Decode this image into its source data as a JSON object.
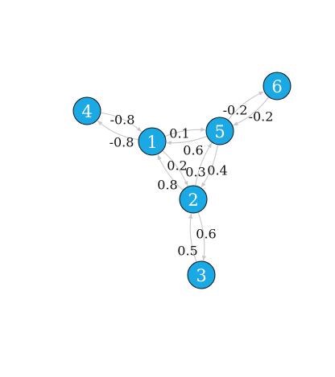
{
  "graph": {
    "colors": {
      "node_fill": "#1ba9e6",
      "node_stroke": "#111111",
      "node_label": "#ffffff",
      "edge": "#c8c8c8",
      "edge_label": "#111111"
    },
    "nodes": [
      {
        "id": "1",
        "label": "1"
      },
      {
        "id": "2",
        "label": "2"
      },
      {
        "id": "3",
        "label": "3"
      },
      {
        "id": "4",
        "label": "4"
      },
      {
        "id": "5",
        "label": "5"
      },
      {
        "id": "6",
        "label": "6"
      }
    ],
    "edges": [
      {
        "from": "4",
        "to": "1",
        "label": "-0.8"
      },
      {
        "from": "1",
        "to": "4",
        "label": "-0.8"
      },
      {
        "from": "5",
        "to": "1",
        "label": "0.1"
      },
      {
        "from": "1",
        "to": "5",
        "label": "0.6"
      },
      {
        "from": "2",
        "to": "1",
        "label": "0.2"
      },
      {
        "from": "1",
        "to": "2",
        "label": "0.8"
      },
      {
        "from": "5",
        "to": "2",
        "label": "0.3"
      },
      {
        "from": "2",
        "to": "5",
        "label": "0.4"
      },
      {
        "from": "6",
        "to": "5",
        "label": "-0.2"
      },
      {
        "from": "5",
        "to": "6",
        "label": "-0.2"
      },
      {
        "from": "3",
        "to": "2",
        "label": "0.6"
      },
      {
        "from": "2",
        "to": "3",
        "label": "0.5"
      }
    ]
  }
}
